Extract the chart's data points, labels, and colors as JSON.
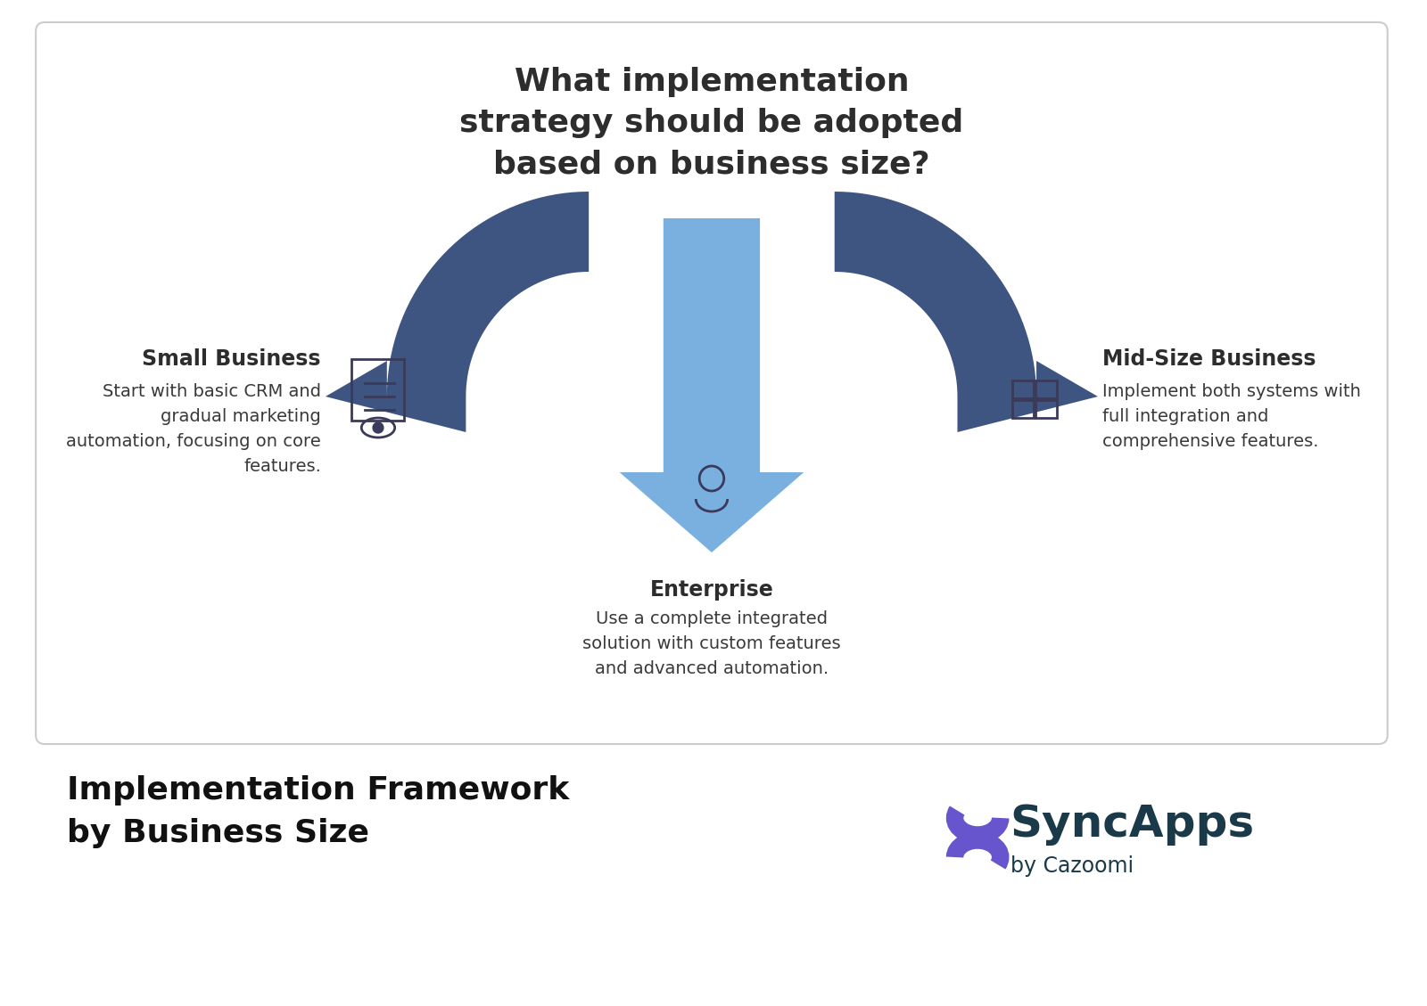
{
  "bg_color": "#ffffff",
  "card_bg": "#ffffff",
  "card_border": "#cccccc",
  "title_text": "What implementation\nstrategy should be adopted\nbased on business size?",
  "title_color": "#2d2d2d",
  "title_fontsize": 26,
  "arrow_dark": "#3d5580",
  "arrow_light": "#7ab0e0",
  "small_biz_label": "Small Business",
  "small_biz_desc": "Start with basic CRM and\ngradual marketing\nautomation, focusing on core\nfeatures.",
  "midsize_label": "Mid-Size Business",
  "midsize_desc": "Implement both systems with\nfull integration and\ncomprehensive features.",
  "enterprise_label": "Enterprise",
  "enterprise_desc": "Use a complete integrated\nsolution with custom features\nand advanced automation.",
  "label_fontsize": 17,
  "desc_fontsize": 14,
  "footer_title": "Implementation Framework\nby Business Size",
  "footer_title_fontsize": 26,
  "footer_title_color": "#111111",
  "syncapps_color": "#1a3a4a",
  "syncapps_s_color": "#6655cc",
  "cazoomi_text": "by Cazoomi",
  "text_color": "#3a3a3a"
}
